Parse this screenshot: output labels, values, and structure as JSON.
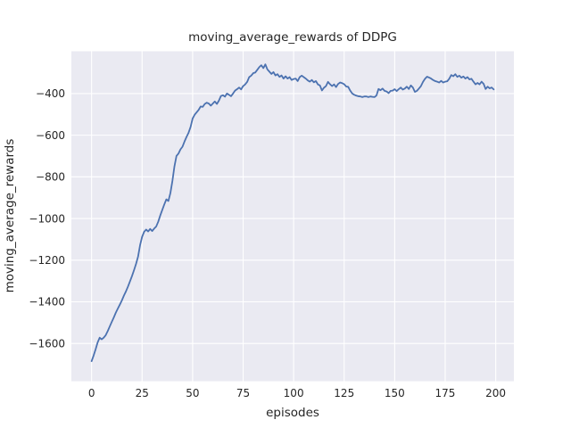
{
  "colors": {
    "figure_bg": "#ffffff",
    "plot_bg": "#eaeaf2",
    "grid": "#ffffff",
    "line": "#4c72b0",
    "text": "#262626"
  },
  "chart_data": {
    "type": "line",
    "title": "moving_average_rewards of DDPG",
    "xlabel": "episodes",
    "ylabel": "moving_average_rewards",
    "legend": null,
    "grid": true,
    "x_ticks": [
      0,
      25,
      50,
      75,
      100,
      125,
      150,
      175,
      200
    ],
    "y_ticks": [
      -400,
      -600,
      -800,
      -1000,
      -1200,
      -1400,
      -1600
    ],
    "xlim": [
      -10,
      209
    ],
    "ylim": [
      -1781,
      -197
    ],
    "series": [
      {
        "name": "moving_average_rewards",
        "x_start": 0,
        "x_step": 1,
        "values": [
          -1685,
          -1658,
          -1628,
          -1595,
          -1572,
          -1580,
          -1572,
          -1560,
          -1540,
          -1518,
          -1496,
          -1475,
          -1452,
          -1432,
          -1413,
          -1393,
          -1370,
          -1350,
          -1327,
          -1302,
          -1276,
          -1248,
          -1218,
          -1183,
          -1128,
          -1088,
          -1064,
          -1053,
          -1062,
          -1050,
          -1060,
          -1048,
          -1038,
          -1015,
          -985,
          -958,
          -932,
          -908,
          -916,
          -878,
          -820,
          -750,
          -700,
          -688,
          -668,
          -655,
          -630,
          -608,
          -588,
          -560,
          -520,
          -502,
          -490,
          -478,
          -462,
          -464,
          -450,
          -444,
          -448,
          -458,
          -448,
          -438,
          -450,
          -434,
          -412,
          -408,
          -415,
          -400,
          -406,
          -413,
          -400,
          -386,
          -379,
          -371,
          -380,
          -364,
          -356,
          -344,
          -321,
          -314,
          -302,
          -299,
          -286,
          -273,
          -264,
          -278,
          -260,
          -284,
          -295,
          -306,
          -297,
          -313,
          -307,
          -320,
          -313,
          -328,
          -317,
          -328,
          -321,
          -335,
          -330,
          -328,
          -340,
          -321,
          -314,
          -321,
          -328,
          -337,
          -343,
          -335,
          -346,
          -340,
          -356,
          -361,
          -385,
          -372,
          -364,
          -344,
          -355,
          -364,
          -356,
          -369,
          -354,
          -347,
          -350,
          -355,
          -366,
          -368,
          -386,
          -400,
          -406,
          -410,
          -413,
          -414,
          -417,
          -414,
          -414,
          -417,
          -414,
          -416,
          -417,
          -409,
          -378,
          -384,
          -376,
          -387,
          -390,
          -398,
          -387,
          -386,
          -379,
          -388,
          -379,
          -371,
          -381,
          -376,
          -367,
          -378,
          -361,
          -371,
          -392,
          -387,
          -376,
          -364,
          -344,
          -329,
          -319,
          -323,
          -328,
          -335,
          -340,
          -343,
          -347,
          -339,
          -347,
          -343,
          -341,
          -329,
          -311,
          -317,
          -307,
          -320,
          -314,
          -324,
          -318,
          -328,
          -321,
          -332,
          -329,
          -343,
          -356,
          -349,
          -356,
          -343,
          -353,
          -378,
          -367,
          -375,
          -371,
          -380
        ]
      }
    ]
  }
}
